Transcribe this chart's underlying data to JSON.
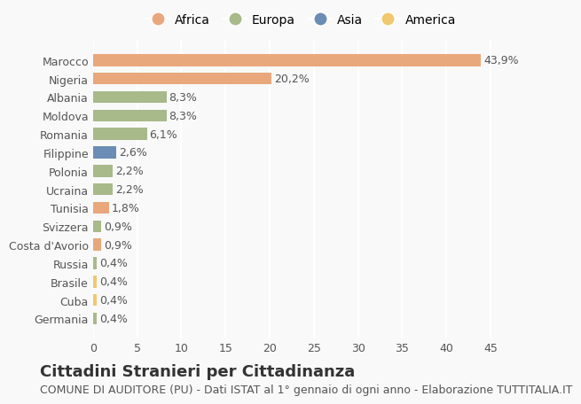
{
  "categories": [
    "Germania",
    "Cuba",
    "Brasile",
    "Russia",
    "Costa d'Avorio",
    "Svizzera",
    "Tunisia",
    "Ucraina",
    "Polonia",
    "Filippine",
    "Romania",
    "Moldova",
    "Albania",
    "Nigeria",
    "Marocco"
  ],
  "values": [
    0.4,
    0.4,
    0.4,
    0.4,
    0.9,
    0.9,
    1.8,
    2.2,
    2.2,
    2.6,
    6.1,
    8.3,
    8.3,
    20.2,
    43.9
  ],
  "labels": [
    "0,4%",
    "0,4%",
    "0,4%",
    "0,4%",
    "0,9%",
    "0,9%",
    "1,8%",
    "2,2%",
    "2,2%",
    "2,6%",
    "6,1%",
    "8,3%",
    "8,3%",
    "20,2%",
    "43,9%"
  ],
  "continents": [
    "Europa",
    "America",
    "America",
    "Europa",
    "Africa",
    "Europa",
    "Africa",
    "Europa",
    "Europa",
    "Asia",
    "Europa",
    "Europa",
    "Europa",
    "Africa",
    "Africa"
  ],
  "colors": {
    "Africa": "#E8A87C",
    "Europa": "#A8B98A",
    "Asia": "#6B8DB5",
    "America": "#F0C86E"
  },
  "legend_order": [
    "Africa",
    "Europa",
    "Asia",
    "America"
  ],
  "legend_colors": [
    "#E8A87C",
    "#A8B98A",
    "#6B8DB5",
    "#F0C86E"
  ],
  "title": "Cittadini Stranieri per Cittadinanza",
  "subtitle": "COMUNE DI AUDITORE (PU) - Dati ISTAT al 1° gennaio di ogni anno - Elaborazione TUTTITALIA.IT",
  "xlim": [
    0,
    47
  ],
  "background_color": "#f9f9f9",
  "grid_color": "#ffffff",
  "bar_height": 0.65,
  "title_fontsize": 13,
  "subtitle_fontsize": 9,
  "label_fontsize": 9,
  "tick_fontsize": 9
}
